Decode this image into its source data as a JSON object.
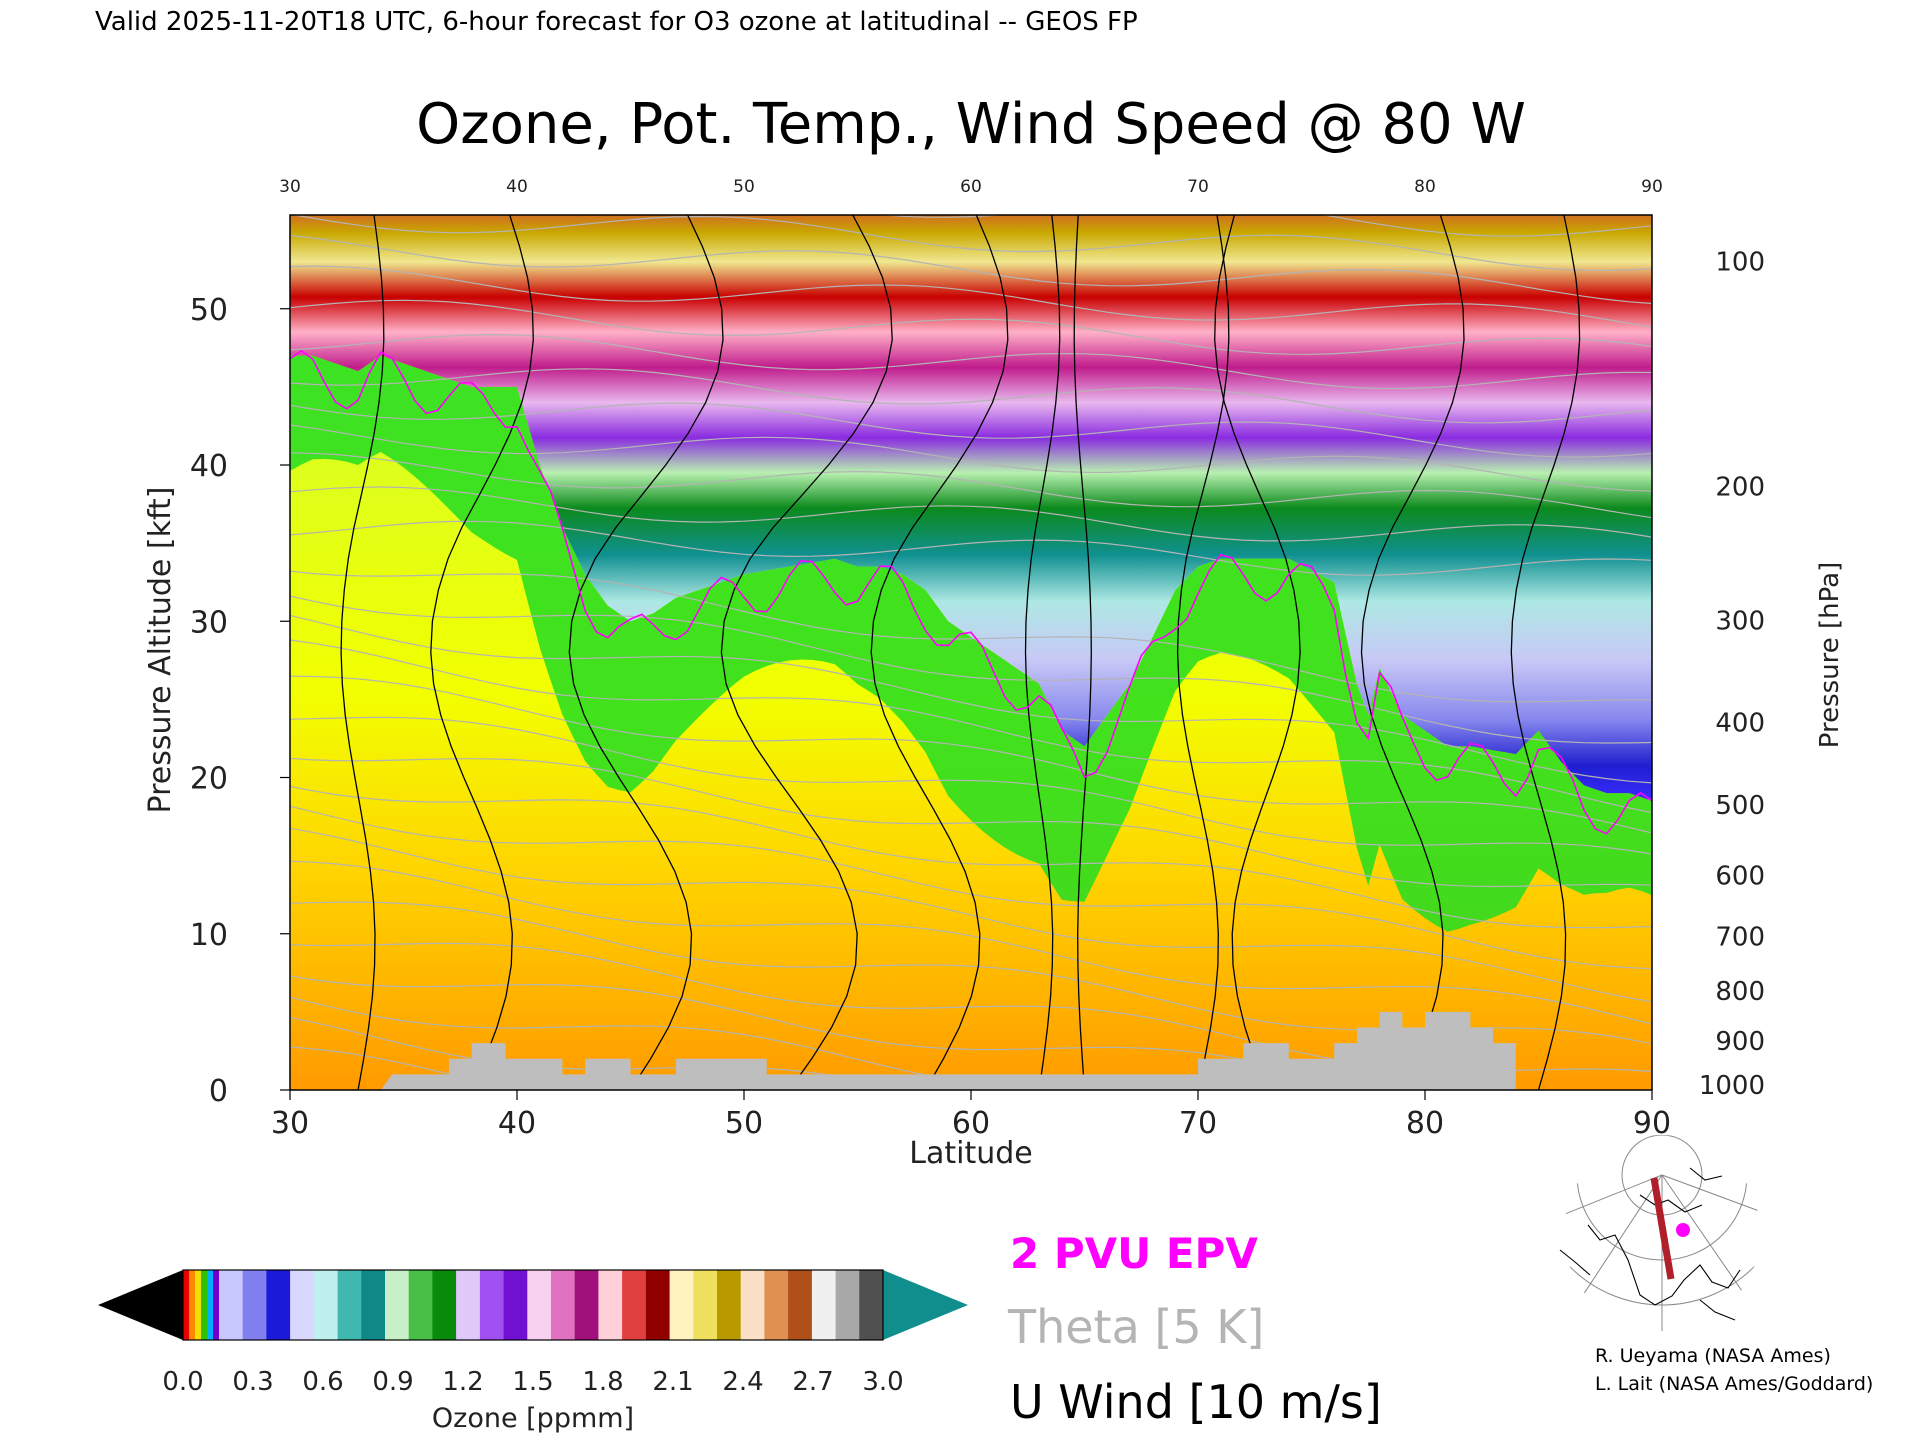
{
  "header": {
    "valid_line": "Valid 2025-11-20T18 UTC, 6-hour forecast for O3 ozone at latitudinal -- GEOS FP"
  },
  "chart_data": {
    "type": "heatmap",
    "title": "Ozone, Pot. Temp., Wind Speed @ 80 W",
    "xlabel": "Latitude",
    "ylabel": "Pressure Altitude [kft]",
    "y2label": "Pressure [hPa]",
    "xlim": [
      30,
      90
    ],
    "ylim": [
      0,
      56
    ],
    "xticks": [
      30,
      40,
      50,
      60,
      70,
      80,
      90
    ],
    "yticks": [
      0,
      10,
      20,
      30,
      40,
      50
    ],
    "top_ticks": [
      30,
      40,
      50,
      60,
      70,
      80,
      90
    ],
    "pressure_ticks": [
      {
        "hPa": "100",
        "kft": 53.1
      },
      {
        "hPa": "200",
        "kft": 38.7
      },
      {
        "hPa": "300",
        "kft": 30.1
      },
      {
        "hPa": "400",
        "kft": 23.6
      },
      {
        "hPa": "500",
        "kft": 18.3
      },
      {
        "hPa": "600",
        "kft": 13.8
      },
      {
        "hPa": "700",
        "kft": 9.9
      },
      {
        "hPa": "800",
        "kft": 6.4
      },
      {
        "hPa": "900",
        "kft": 3.2
      },
      {
        "hPa": "1000",
        "kft": 0.4
      }
    ],
    "tropopause_kft": {
      "lat": [
        30,
        31,
        33,
        34,
        35,
        36,
        37,
        38,
        39,
        40,
        41,
        42,
        43,
        44,
        45,
        46,
        47,
        48,
        50,
        52,
        54,
        55,
        56,
        57,
        58,
        59,
        60,
        61,
        62,
        63,
        64,
        65,
        66,
        67,
        68,
        69,
        70,
        71,
        72,
        74,
        76,
        77,
        77.5,
        78,
        79,
        80,
        81,
        82,
        84,
        85,
        86,
        87,
        88,
        89,
        90
      ],
      "values": [
        47,
        47,
        46,
        47,
        46.5,
        46,
        45.5,
        45,
        45,
        45,
        40,
        36,
        33,
        31,
        30,
        30.5,
        31.5,
        32,
        33,
        33.5,
        34,
        33.5,
        33.5,
        33,
        32,
        30,
        29,
        28,
        27,
        26,
        23,
        22,
        24,
        26,
        29,
        32,
        33.5,
        34,
        34,
        34,
        32.5,
        26,
        24,
        27,
        24,
        23,
        22,
        22,
        21.5,
        23,
        21,
        19.5,
        19,
        19,
        18.5
      ]
    },
    "ozone_colorbar": {
      "label": "Ozone [ppmm]",
      "tick_labels": [
        "0.0",
        "0.3",
        "0.6",
        "0.9",
        "1.2",
        "1.5",
        "1.8",
        "2.1",
        "2.4",
        "2.7",
        "3.0"
      ]
    },
    "legend": [
      {
        "label": "2 PVU EPV",
        "color": "#ff00ff"
      },
      {
        "label": "Theta [5 K]",
        "color": "#b4b4b4"
      },
      {
        "label": "U Wind [10 m/s]",
        "color": "#000000"
      }
    ]
  },
  "credits": {
    "line1": "R. Ueyama (NASA Ames)",
    "line2": "L. Lait (NASA Ames/Goddard)"
  },
  "colors": {
    "epv": "#ff00ff",
    "theta": "#b4b4b4",
    "wind": "#000000",
    "terrain": "#bebebe",
    "section_line": "#b0202a"
  }
}
